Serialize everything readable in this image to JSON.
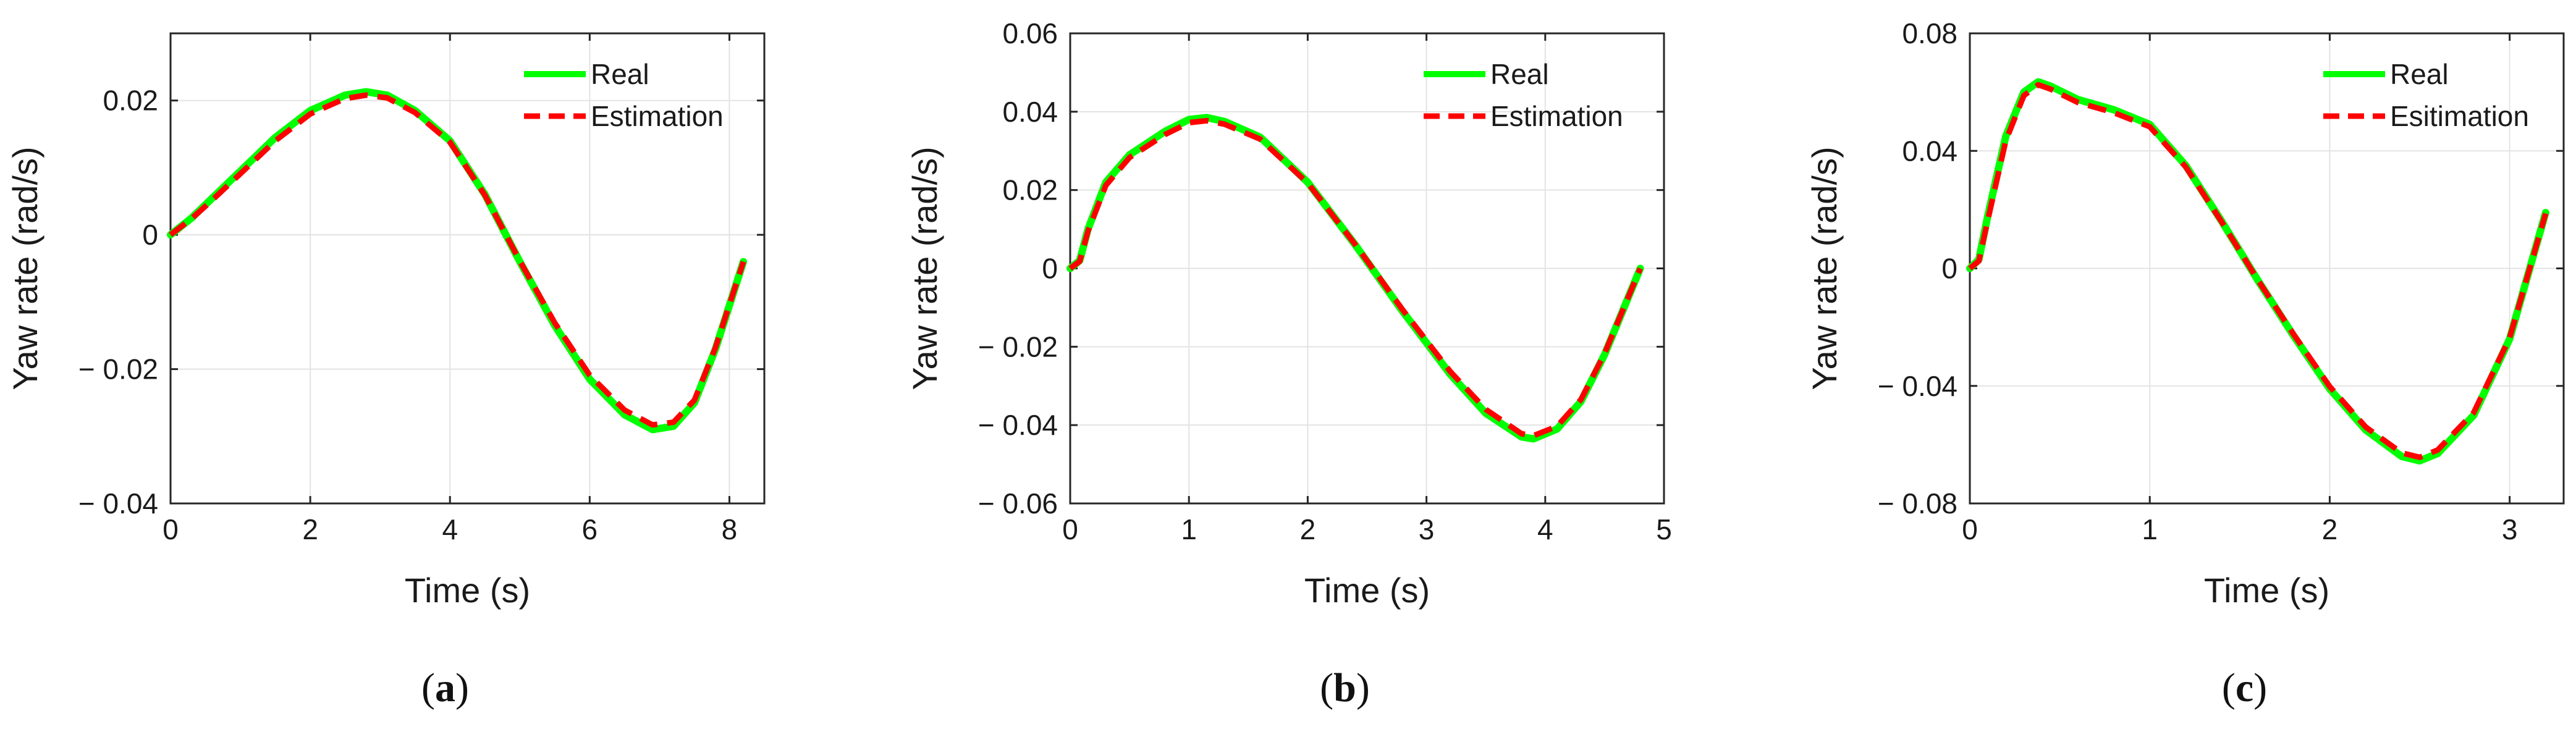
{
  "chart_data": [
    {
      "type": "line",
      "panel_label": "(a)",
      "panel_letter": "a",
      "xlabel": "Time (s)",
      "ylabel": "Yaw rate (rad/s)",
      "xlim": [
        0,
        8.5
      ],
      "ylim": [
        -0.04,
        0.03
      ],
      "xticks": [
        0,
        2,
        4,
        6,
        8
      ],
      "xtick_labels": [
        "0",
        "2",
        "4",
        "6",
        "8"
      ],
      "yticks": [
        -0.04,
        -0.02,
        0,
        0.02
      ],
      "ytick_labels": [
        "− 0.04",
        "− 0.02",
        "0",
        "0.02"
      ],
      "grid": true,
      "legend_position": "top-right",
      "series": [
        {
          "name": "Real",
          "color": "#00ff00",
          "style": "solid",
          "x": [
            0,
            0.3,
            0.6,
            1.0,
            1.5,
            2.0,
            2.5,
            2.8,
            3.1,
            3.5,
            4.0,
            4.5,
            5.0,
            5.5,
            6.0,
            6.5,
            6.9,
            7.2,
            7.5,
            7.8,
            8.2
          ],
          "y": [
            0,
            0.0025,
            0.0055,
            0.0095,
            0.0145,
            0.0185,
            0.0208,
            0.0213,
            0.0208,
            0.0185,
            0.014,
            0.006,
            -0.004,
            -0.0135,
            -0.0215,
            -0.0268,
            -0.029,
            -0.0285,
            -0.025,
            -0.017,
            -0.004
          ]
        },
        {
          "name": "Estimation",
          "color": "#ff0000",
          "style": "dashed",
          "x": [
            0,
            0.3,
            0.6,
            1.0,
            1.5,
            2.0,
            2.5,
            2.8,
            3.1,
            3.5,
            4.0,
            4.5,
            5.0,
            5.5,
            6.0,
            6.5,
            6.9,
            7.2,
            7.5,
            7.8,
            8.2
          ],
          "y": [
            0,
            0.0024,
            0.0052,
            0.0091,
            0.014,
            0.018,
            0.0203,
            0.0208,
            0.0204,
            0.0182,
            0.0138,
            0.0059,
            -0.0039,
            -0.0131,
            -0.0209,
            -0.0261,
            -0.0283,
            -0.0279,
            -0.0246,
            -0.0168,
            -0.004
          ]
        }
      ]
    },
    {
      "type": "line",
      "panel_label": "(b)",
      "panel_letter": "b",
      "xlabel": "Time (s)",
      "ylabel": "Yaw rate (rad/s)",
      "xlim": [
        0,
        5
      ],
      "ylim": [
        -0.06,
        0.06
      ],
      "xticks": [
        0,
        1,
        2,
        3,
        4,
        5
      ],
      "xtick_labels": [
        "0",
        "1",
        "2",
        "3",
        "4",
        "5"
      ],
      "yticks": [
        -0.06,
        -0.04,
        -0.02,
        0,
        0.02,
        0.04,
        0.06
      ],
      "ytick_labels": [
        "− 0.06",
        "− 0.04",
        "− 0.02",
        "0",
        "0.02",
        "0.04",
        "0.06"
      ],
      "grid": true,
      "legend_position": "top-right",
      "series": [
        {
          "name": "Real",
          "color": "#00ff00",
          "style": "solid",
          "x": [
            0,
            0.08,
            0.15,
            0.3,
            0.5,
            0.8,
            1.0,
            1.15,
            1.3,
            1.6,
            2.0,
            2.4,
            2.8,
            3.2,
            3.5,
            3.8,
            3.9,
            4.1,
            4.3,
            4.5,
            4.65,
            4.8
          ],
          "y": [
            0,
            0.002,
            0.01,
            0.022,
            0.029,
            0.035,
            0.038,
            0.0385,
            0.0375,
            0.0335,
            0.022,
            0.006,
            -0.011,
            -0.027,
            -0.037,
            -0.043,
            -0.0435,
            -0.041,
            -0.034,
            -0.022,
            -0.011,
            0
          ]
        },
        {
          "name": "Estimation",
          "color": "#ff0000",
          "style": "dashed",
          "x": [
            0,
            0.08,
            0.15,
            0.3,
            0.5,
            0.8,
            1.0,
            1.15,
            1.3,
            1.6,
            2.0,
            2.4,
            2.8,
            3.2,
            3.5,
            3.8,
            3.9,
            4.1,
            4.3,
            4.5,
            4.65,
            4.8
          ],
          "y": [
            0,
            0.0018,
            0.0095,
            0.0212,
            0.0283,
            0.0342,
            0.0372,
            0.0377,
            0.0368,
            0.033,
            0.0218,
            0.0061,
            -0.0106,
            -0.0263,
            -0.036,
            -0.0422,
            -0.0427,
            -0.0403,
            -0.0335,
            -0.0217,
            -0.0109,
            0
          ]
        }
      ]
    },
    {
      "type": "line",
      "panel_label": "(c)",
      "panel_letter": "c",
      "xlabel": "Time (s)",
      "ylabel": "Yaw rate (rad/s)",
      "xlim": [
        0,
        3.3
      ],
      "ylim": [
        -0.08,
        0.08
      ],
      "xticks": [
        0,
        1,
        2,
        3
      ],
      "xtick_labels": [
        "0",
        "1",
        "2",
        "3"
      ],
      "yticks": [
        -0.08,
        -0.04,
        0,
        0.04,
        0.08
      ],
      "ytick_labels": [
        "− 0.08",
        "− 0.04",
        "0",
        "0.04",
        "0.08"
      ],
      "grid": true,
      "legend_position": "top-right",
      "series": [
        {
          "name": "Real",
          "color": "#00ff00",
          "style": "solid",
          "x": [
            0,
            0.05,
            0.1,
            0.2,
            0.3,
            0.38,
            0.45,
            0.6,
            0.8,
            1.0,
            1.2,
            1.4,
            1.6,
            1.8,
            2.0,
            2.2,
            2.4,
            2.5,
            2.6,
            2.8,
            3.0,
            3.2
          ],
          "y": [
            0,
            0.003,
            0.018,
            0.045,
            0.06,
            0.0635,
            0.062,
            0.0575,
            0.054,
            0.049,
            0.035,
            0.016,
            -0.004,
            -0.023,
            -0.041,
            -0.055,
            -0.064,
            -0.0655,
            -0.063,
            -0.05,
            -0.024,
            0.019
          ]
        },
        {
          "name": "Esitimation",
          "color": "#ff0000",
          "style": "dashed",
          "x": [
            0,
            0.05,
            0.1,
            0.2,
            0.3,
            0.38,
            0.45,
            0.6,
            0.8,
            1.0,
            1.2,
            1.4,
            1.6,
            1.8,
            2.0,
            2.2,
            2.4,
            2.5,
            2.6,
            2.8,
            3.0,
            3.2
          ],
          "y": [
            0,
            0.0025,
            0.0165,
            0.0435,
            0.0588,
            0.0625,
            0.061,
            0.0565,
            0.053,
            0.0482,
            0.0345,
            0.0158,
            -0.0039,
            -0.0225,
            -0.0402,
            -0.054,
            -0.0628,
            -0.0643,
            -0.0618,
            -0.0491,
            -0.0236,
            0.0187
          ]
        }
      ]
    }
  ]
}
